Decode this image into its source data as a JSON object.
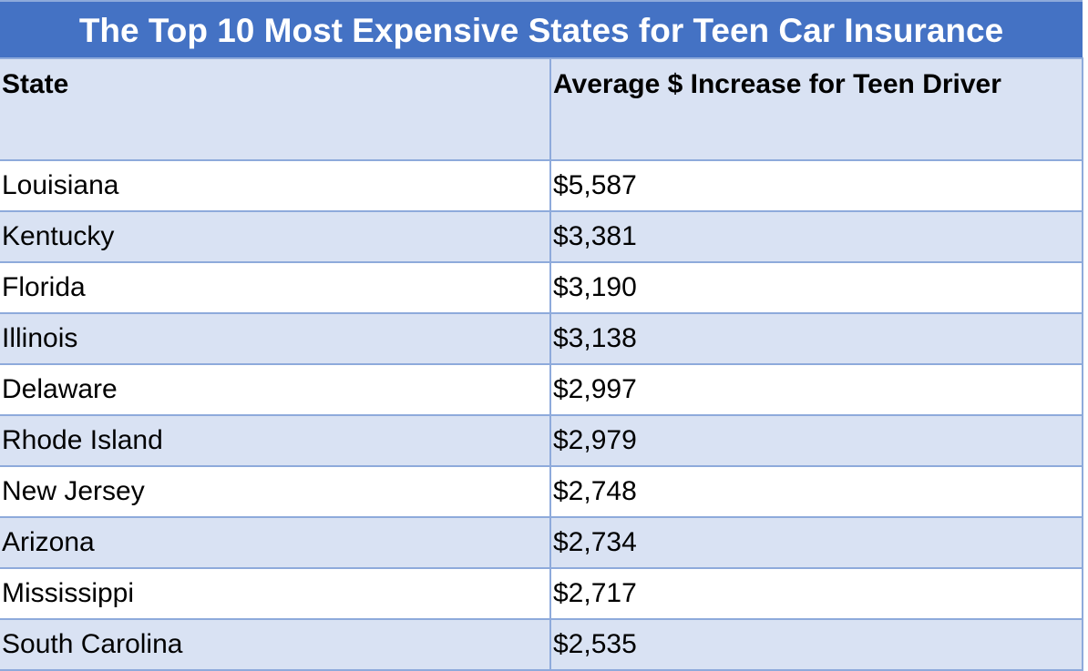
{
  "title": "The Top 10 Most Expensive States for Teen Car Insurance",
  "columns": [
    "State",
    "Average $ Increase for Teen Driver"
  ],
  "rows": [
    {
      "state": "Louisiana",
      "increase": "$5,587"
    },
    {
      "state": "Kentucky",
      "increase": "$3,381"
    },
    {
      "state": "Florida",
      "increase": "$3,190"
    },
    {
      "state": "Illinois",
      "increase": "$3,138"
    },
    {
      "state": "Delaware",
      "increase": "$2,997"
    },
    {
      "state": "Rhode Island",
      "increase": "$2,979"
    },
    {
      "state": "New Jersey",
      "increase": "$2,748"
    },
    {
      "state": "Arizona",
      "increase": "$2,734"
    },
    {
      "state": "Mississippi",
      "increase": "$2,717"
    },
    {
      "state": "South Carolina",
      "increase": "$2,535"
    }
  ],
  "colors": {
    "title_background": "#4472c4",
    "header_background": "#d9e2f3",
    "band_background": "#d9e2f3",
    "border": "#8eaadb"
  }
}
